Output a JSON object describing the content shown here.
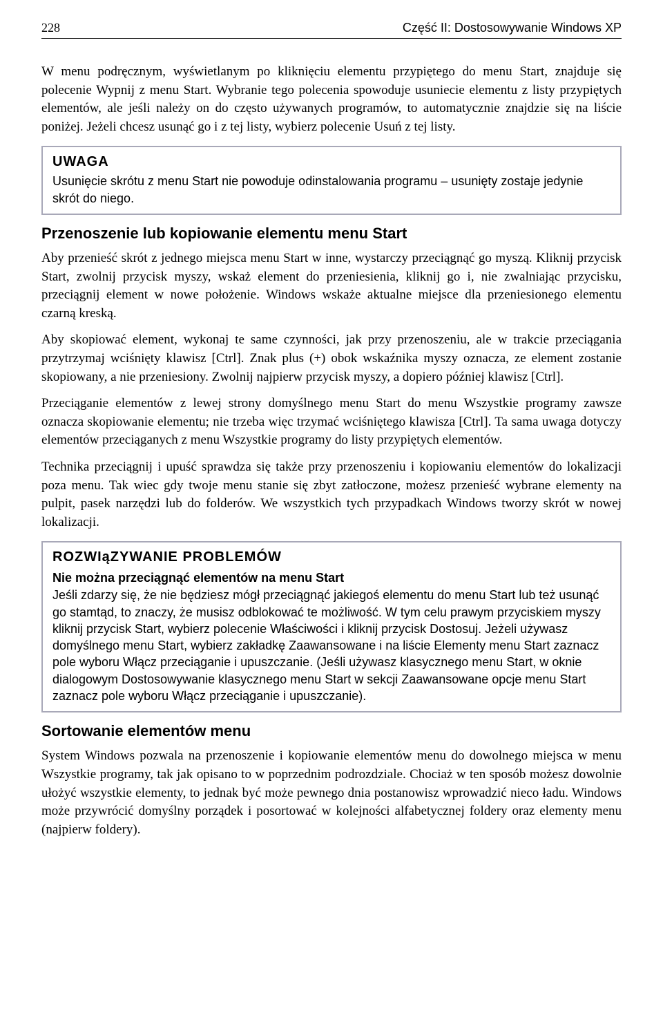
{
  "header": {
    "page_number": "228",
    "chapter": "Część II: Dostosowywanie Windows XP"
  },
  "paragraphs": {
    "p1": "W menu podręcznym, wyświetlanym po kliknięciu elementu przypiętego do menu Start, znajduje się polecenie Wypnij z menu Start. Wybranie tego polecenia spowoduje usuniecie elementu z listy przypiętych elementów, ale jeśli należy on do często używanych programów, to automatycznie znajdzie się na liście poniżej. Jeżeli chcesz usunąć go i z tej listy, wybierz polecenie Usuń z tej listy."
  },
  "callout1": {
    "title": "UWAGA",
    "text": "Usunięcie skrótu z menu Start nie powoduje odinstalowania programu – usunięty zostaje jedynie skrót do niego."
  },
  "section1": {
    "heading": "Przenoszenie lub kopiowanie elementu menu Start",
    "p1": "Aby przenieść skrót z jednego miejsca menu Start w inne, wystarczy przeciągnąć go myszą. Kliknij przycisk Start, zwolnij przycisk myszy, wskaż element do przeniesienia, kliknij go i, nie zwalniając przycisku, przeciągnij element w nowe położenie. Windows wskaże aktualne miejsce dla przeniesionego elementu czarną kreską.",
    "p2": "Aby skopiować element, wykonaj te same czynności, jak przy przenoszeniu, ale w trakcie przeciągania przytrzymaj wciśnięty klawisz [Ctrl]. Znak plus (+) obok wskaźnika myszy oznacza, ze element zostanie skopiowany, a nie przeniesiony. Zwolnij najpierw przycisk myszy, a dopiero później klawisz [Ctrl].",
    "p3": "Przeciąganie elementów z lewej strony domyślnego menu Start do menu Wszystkie programy zawsze oznacza skopiowanie elementu; nie trzeba więc trzymać wciśniętego klawisza [Ctrl]. Ta sama uwaga dotyczy elementów przeciąganych z menu Wszystkie programy do listy przypiętych elementów.",
    "p4": "Technika przeciągnij i upuść sprawdza się także przy przenoszeniu i kopiowaniu elementów do lokalizacji poza menu. Tak wiec gdy twoje menu stanie się zbyt zatłoczone, możesz przenieść wybrane elementy na pulpit, pasek narzędzi lub do folderów. We wszystkich tych przypadkach Windows tworzy skrót w nowej lokalizacji."
  },
  "callout2": {
    "title": "ROZWIąZYWANIE PROBLEMÓW",
    "subheading": "Nie można przeciągnąć elementów na menu Start",
    "text": "Jeśli zdarzy się, że nie będziesz mógł przeciągnąć jakiegoś elementu do menu Start lub też usunąć go stamtąd, to znaczy, że musisz odblokować te możliwość. W tym celu prawym przyciskiem myszy kliknij przycisk Start, wybierz polecenie Właściwości i kliknij przycisk Dostosuj. Jeżeli używasz domyślnego menu Start, wybierz zakładkę Zaawansowane i na liście Elementy menu Start zaznacz pole wyboru Włącz przeciąganie i upuszczanie. (Jeśli używasz klasycznego menu Start, w oknie dialogowym Dostosowywanie klasycznego menu Start w sekcji Zaawansowane opcje menu Start zaznacz pole wyboru Włącz przeciąganie i upuszczanie)."
  },
  "section2": {
    "heading": "Sortowanie elementów menu",
    "p1": "System Windows pozwala na przenoszenie i kopiowanie elementów menu do dowolnego miejsca w menu Wszystkie programy, tak jak opisano to w poprzednim podrozdziale. Chociaż w ten sposób możesz dowolnie ułożyć wszystkie elementy, to jednak być może pewnego dnia postanowisz wprowadzić nieco ładu. Windows może przywrócić domyślny porządek i posortować w kolejności alfabetycznej foldery oraz elementy menu (najpierw foldery)."
  },
  "styles": {
    "body_font": "Georgia serif",
    "heading_font": "Arial sans-serif",
    "callout_border_color": "#a8a8b8",
    "text_color": "#000000",
    "background_color": "#ffffff",
    "body_fontsize": 19,
    "heading_fontsize": 22,
    "callout_title_fontsize": 20,
    "callout_text_fontsize": 18
  }
}
